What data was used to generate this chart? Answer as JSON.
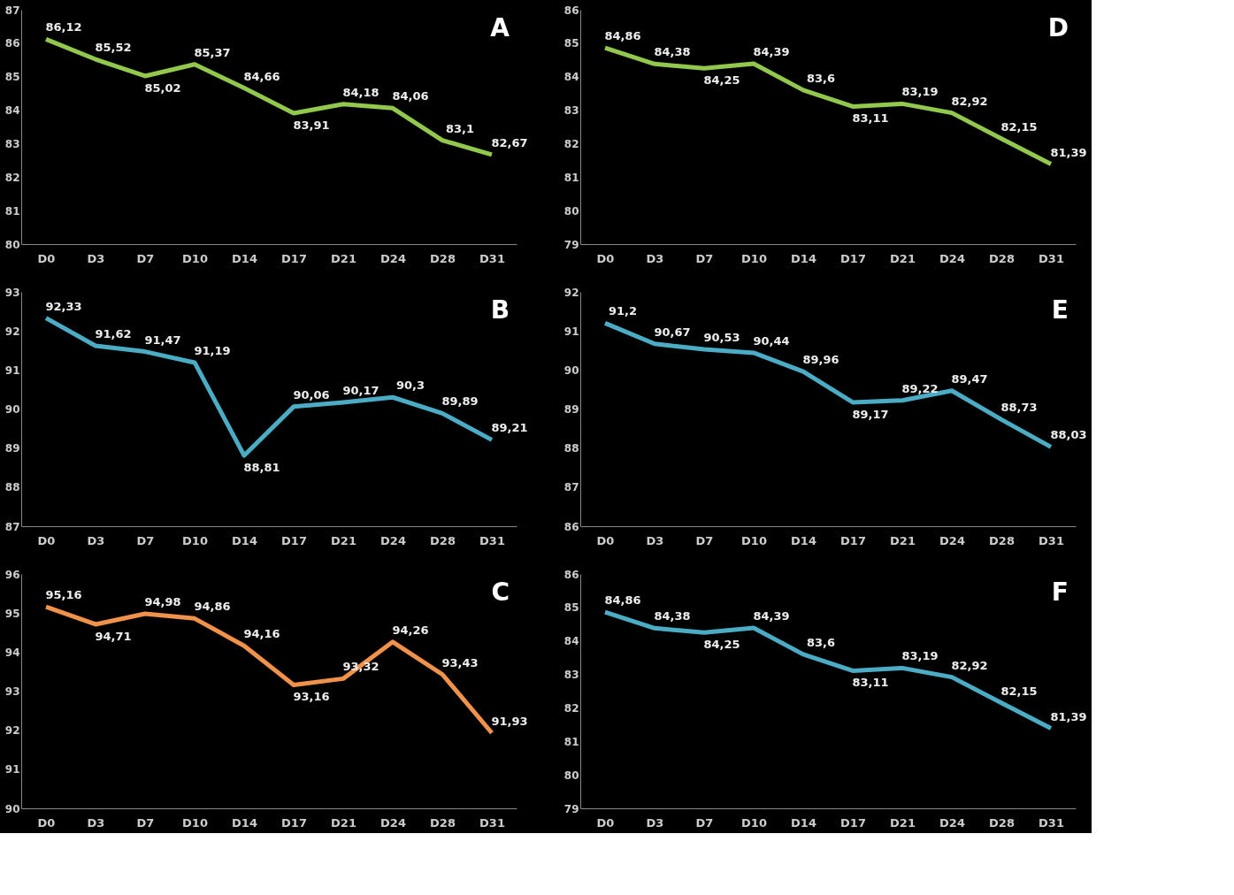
{
  "chart_data": [
    {
      "type": "line",
      "annotations": [
        "A"
      ],
      "categories": [
        "D0",
        "D3",
        "D7",
        "D10",
        "D14",
        "D17",
        "D21",
        "D24",
        "D28",
        "D31"
      ],
      "ylim": [
        80,
        87
      ],
      "yticks": [
        80,
        81,
        82,
        83,
        84,
        85,
        86,
        87
      ],
      "grid": false,
      "series": [
        {
          "color": "#92c84c",
          "values": [
            86.12,
            85.52,
            85.02,
            85.37,
            84.66,
            83.91,
            84.18,
            84.06,
            83.1,
            82.67
          ],
          "value_labels": [
            "86,12",
            "85,52",
            "85,02",
            "85,37",
            "84,66",
            "83,91",
            "84,18",
            "84,06",
            "83,1",
            "82,67"
          ]
        }
      ]
    },
    {
      "type": "line",
      "annotations": [
        "D"
      ],
      "categories": [
        "D0",
        "D3",
        "D7",
        "D10",
        "D14",
        "D17",
        "D21",
        "D24",
        "D28",
        "D31"
      ],
      "ylim": [
        79,
        86
      ],
      "yticks": [
        79,
        80,
        81,
        82,
        83,
        84,
        85,
        86
      ],
      "grid": false,
      "series": [
        {
          "color": "#92c84c",
          "values": [
            84.86,
            84.38,
            84.25,
            84.39,
            83.6,
            83.11,
            83.19,
            82.92,
            82.15,
            81.39
          ],
          "value_labels": [
            "84,86",
            "84,38",
            "84,25",
            "84,39",
            "83,6",
            "83,11",
            "83,19",
            "82,92",
            "82,15",
            "81,39"
          ]
        }
      ]
    },
    {
      "type": "line",
      "annotations": [
        "B"
      ],
      "categories": [
        "D0",
        "D3",
        "D7",
        "D10",
        "D14",
        "D17",
        "D21",
        "D24",
        "D28",
        "D31"
      ],
      "ylim": [
        87,
        93
      ],
      "yticks": [
        87,
        88,
        89,
        90,
        91,
        92,
        93
      ],
      "grid": false,
      "series": [
        {
          "color": "#4bacc6",
          "values": [
            92.33,
            91.62,
            91.47,
            91.19,
            88.81,
            90.06,
            90.17,
            90.3,
            89.89,
            89.21
          ],
          "value_labels": [
            "92,33",
            "91,62",
            "91,47",
            "91,19",
            "88,81",
            "90,06",
            "90,17",
            "90,3",
            "89,89",
            "89,21"
          ]
        }
      ]
    },
    {
      "type": "line",
      "annotations": [
        "E"
      ],
      "categories": [
        "D0",
        "D3",
        "D7",
        "D10",
        "D14",
        "D17",
        "D21",
        "D24",
        "D28",
        "D31"
      ],
      "ylim": [
        86,
        92
      ],
      "yticks": [
        86,
        87,
        88,
        89,
        90,
        91,
        92
      ],
      "grid": false,
      "series": [
        {
          "color": "#4bacc6",
          "values": [
            91.2,
            90.67,
            90.53,
            90.44,
            89.96,
            89.17,
            89.22,
            89.47,
            88.73,
            88.03
          ],
          "value_labels": [
            "91,2",
            "90,67",
            "90,53",
            "90,44",
            "89,96",
            "89,17",
            "89,22",
            "89,47",
            "88,73",
            "88,03"
          ]
        }
      ]
    },
    {
      "type": "line",
      "annotations": [
        "C"
      ],
      "categories": [
        "D0",
        "D3",
        "D7",
        "D10",
        "D14",
        "D17",
        "D21",
        "D24",
        "D28",
        "D31"
      ],
      "ylim": [
        90,
        96
      ],
      "yticks": [
        90,
        91,
        92,
        93,
        94,
        95,
        96
      ],
      "grid": false,
      "series": [
        {
          "color": "#f0924a",
          "values": [
            95.16,
            94.71,
            94.98,
            94.86,
            94.16,
            93.16,
            93.32,
            94.26,
            93.43,
            91.93
          ],
          "value_labels": [
            "95,16",
            "94,71",
            "94,98",
            "94,86",
            "94,16",
            "93,16",
            "93,32",
            "94,26",
            "93,43",
            "91,93"
          ]
        }
      ]
    },
    {
      "type": "line",
      "annotations": [
        "F"
      ],
      "categories": [
        "D0",
        "D3",
        "D7",
        "D10",
        "D14",
        "D17",
        "D21",
        "D24",
        "D28",
        "D31"
      ],
      "ylim": [
        79,
        86
      ],
      "yticks": [
        79,
        80,
        81,
        82,
        83,
        84,
        85,
        86
      ],
      "grid": false,
      "series": [
        {
          "color": "#4bacc6",
          "values": [
            84.86,
            84.38,
            84.25,
            84.39,
            83.6,
            83.11,
            83.19,
            82.92,
            82.15,
            81.39
          ],
          "value_labels": [
            "84,86",
            "84,38",
            "84,25",
            "84,39",
            "83,6",
            "83,11",
            "83,19",
            "82,92",
            "82,15",
            "81,39"
          ]
        }
      ]
    }
  ]
}
